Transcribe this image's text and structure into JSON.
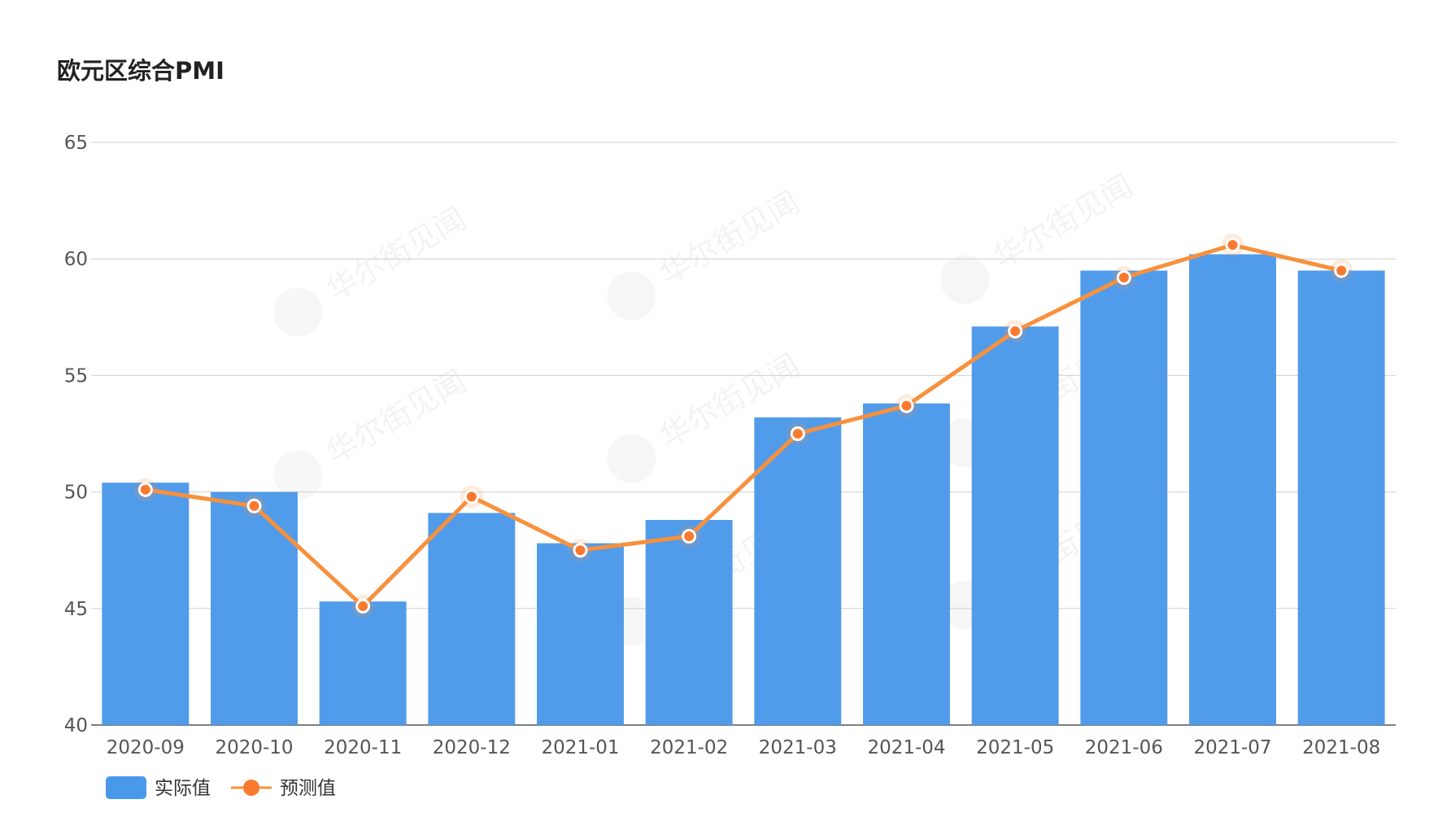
{
  "chart_data": {
    "type": "bar",
    "title": "欧元区综合PMI",
    "categories": [
      "2020-09",
      "2020-10",
      "2020-11",
      "2020-12",
      "2021-01",
      "2021-02",
      "2021-03",
      "2021-04",
      "2021-05",
      "2021-06",
      "2021-07",
      "2021-08"
    ],
    "series": [
      {
        "name": "实际值",
        "type": "bar",
        "color": "#4a98e9",
        "values": [
          50.4,
          50.0,
          45.3,
          49.1,
          47.8,
          48.8,
          53.2,
          53.8,
          57.1,
          59.5,
          60.2,
          59.5
        ]
      },
      {
        "name": "预测值",
        "type": "line",
        "color": "#f7913d",
        "values": [
          50.1,
          49.4,
          45.1,
          49.8,
          47.5,
          48.1,
          52.5,
          53.7,
          56.9,
          59.2,
          60.6,
          59.5
        ]
      }
    ],
    "yticks": [
      40,
      45,
      50,
      55,
      60,
      65
    ],
    "ylim": [
      40,
      65
    ],
    "grid": true,
    "legend_position": "bottom-left",
    "watermark_text": "华尔街见闻"
  }
}
